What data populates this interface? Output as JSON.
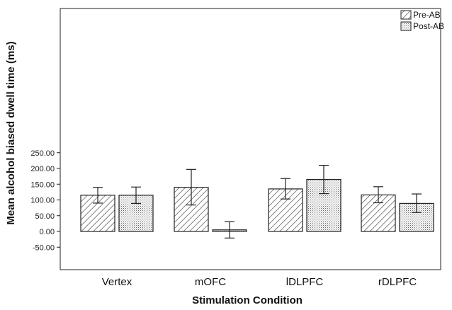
{
  "chart_data": {
    "type": "bar",
    "title": "",
    "xlabel": "Stimulation Condition",
    "ylabel": "Mean alcohol biased dwell time (ms)",
    "categories": [
      "Vertex",
      "mOFC",
      "lDLPFC",
      "rDLPFC"
    ],
    "yticks": [
      "-50.00",
      "0.00",
      "50.00",
      "100.00",
      "150.00",
      "200.00",
      "250.00"
    ],
    "ylim": [
      -50,
      280
    ],
    "legend_position": "top-right",
    "series": [
      {
        "name": "Pre-AB",
        "pattern": "diagonal-hatch",
        "values": [
          115,
          140,
          135,
          116
        ],
        "error_low": [
          90,
          84,
          103,
          91
        ],
        "error_high": [
          140,
          197,
          168,
          142
        ]
      },
      {
        "name": "Post-AB",
        "pattern": "dotted",
        "values": [
          115,
          5,
          165,
          89
        ],
        "error_low": [
          89,
          -21,
          120,
          60
        ],
        "error_high": [
          141,
          31,
          210,
          119
        ]
      }
    ],
    "grid": false,
    "colors": {
      "fill": "#ffffff",
      "stroke": "#222222",
      "pattern": "#444444"
    }
  }
}
